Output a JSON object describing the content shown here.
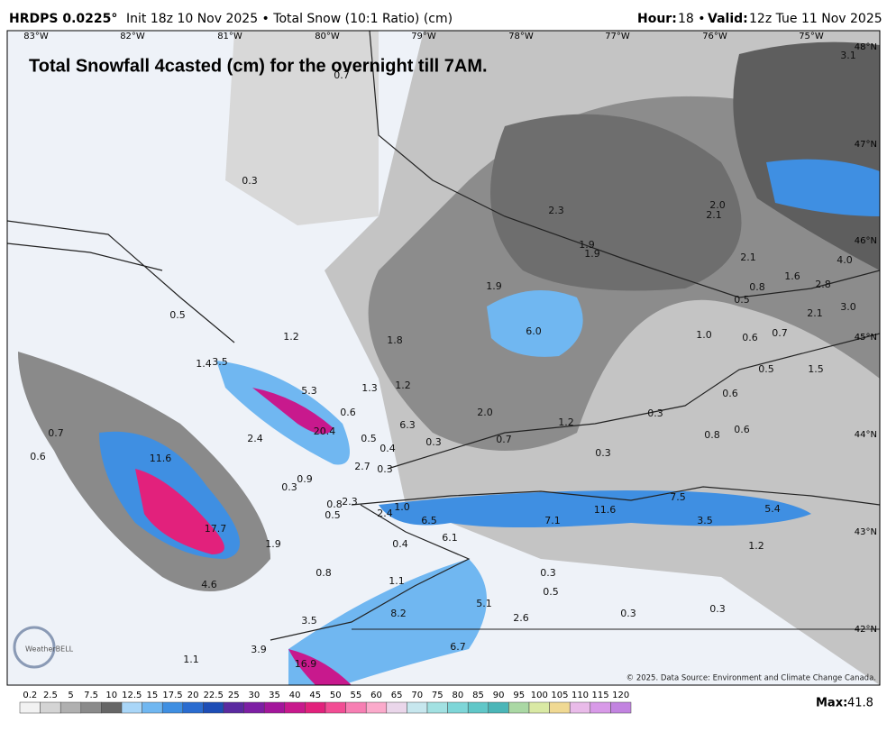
{
  "header": {
    "model": "HRDPS 0.0225°",
    "info": "Init 18z 10 Nov 2025 • Total Snow (10:1 Ratio) (cm)",
    "hour_label": "Hour:",
    "hour_value": "18 •",
    "valid_label": "Valid:",
    "valid_value": "12z Tue 11 Nov 2025"
  },
  "map": {
    "overlay_title": "Total Snowfall 4casted (cm) for the overnight till 7AM.",
    "longitudes": [
      "83°W",
      "82°W",
      "81°W",
      "80°W",
      "79°W",
      "78°W",
      "77°W",
      "76°W",
      "75°W"
    ],
    "latitudes": [
      "48°N",
      "47°N",
      "46°N",
      "45°N",
      "44°N",
      "43°N",
      "42°N"
    ],
    "values": [
      "0.7",
      "0.3",
      "2.3",
      "2.0",
      "2.1",
      "1.9",
      "1.9",
      "2.1",
      "1.9",
      "1.6",
      "0.8",
      "0.5",
      "2.8",
      "3.0",
      "2.1",
      "0.5",
      "6.0",
      "1.0",
      "0.6",
      "0.7",
      "1.2",
      "1.8",
      "1.4",
      "3.5",
      "0.5",
      "1.5",
      "1.3",
      "1.2",
      "5.3",
      "0.6",
      "2.0",
      "0.6",
      "6.3",
      "1.2",
      "0.3",
      "20.4",
      "0.7",
      "2.4",
      "0.5",
      "0.3",
      "0.7",
      "0.8",
      "0.6",
      "0.4",
      "0.3",
      "0.6",
      "11.6",
      "2.7",
      "0.3",
      "0.9",
      "0.3",
      "0.8",
      "2.3",
      "0.5",
      "1.0",
      "2.4",
      "6.5",
      "7.5",
      "11.6",
      "7.1",
      "3.5",
      "5.4",
      "17.7",
      "6.1",
      "0.4",
      "1.9",
      "1.2",
      "0.8",
      "0.3",
      "1.1",
      "4.6",
      "0.5",
      "5.1",
      "0.3",
      "0.3",
      "8.2",
      "2.6",
      "3.5",
      "6.7",
      "3.9",
      "1.1",
      "16.9",
      "3.1",
      "4.0"
    ],
    "copyright": "© 2025. Data Source: Environment and Climate Change Canada.",
    "logo": "WeatherBELL"
  },
  "colorbar": {
    "ticks": [
      "0.2",
      "2.5",
      "5",
      "7.5",
      "10",
      "12.5",
      "15",
      "17.5",
      "20",
      "22.5",
      "25",
      "30",
      "35",
      "40",
      "45",
      "50",
      "55",
      "60",
      "65",
      "70",
      "75",
      "80",
      "85",
      "90",
      "95",
      "100",
      "105",
      "110",
      "115",
      "120"
    ],
    "colors": [
      "#f2f2f2",
      "#d4d4d4",
      "#b0b0b0",
      "#8a8a8a",
      "#666666",
      "#a9d6f8",
      "#70b7f1",
      "#3f8fe2",
      "#2a6cd0",
      "#1d4db6",
      "#5a2aa0",
      "#7d1fa4",
      "#a3169b",
      "#c8198d",
      "#e2217c",
      "#f24d94",
      "#f77fb3",
      "#fbaacb",
      "#ead6ea",
      "#c7e7ee",
      "#a2e1e2",
      "#7ed6d8",
      "#60c7c8",
      "#4bb6b8",
      "#aad8a4",
      "#d9e9a4",
      "#f0d993",
      "#e9bbe9",
      "#d89ae8",
      "#c283e0"
    ],
    "max_label": "Max:",
    "max_value": "41.8"
  }
}
